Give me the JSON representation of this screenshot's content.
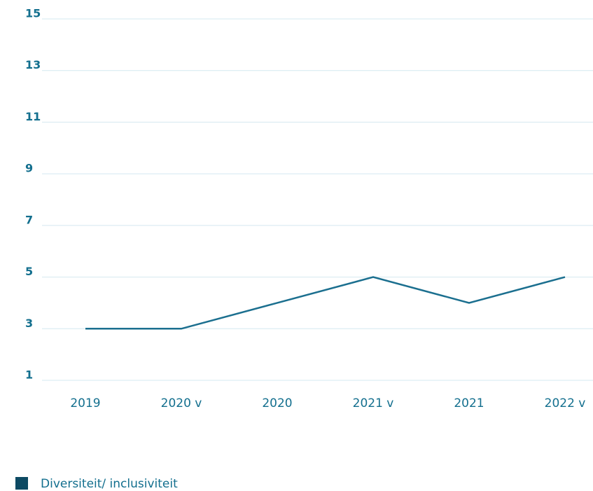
{
  "chart_data": {
    "type": "line",
    "categories": [
      "2019",
      "2020 v",
      "2020",
      "2021 v",
      "2021",
      "2022 v"
    ],
    "series": [
      {
        "name": "Diversiteit/ inclusiviteit",
        "color": "#1b6f8f",
        "values": [
          3,
          3,
          4,
          5,
          4,
          5
        ]
      }
    ],
    "ylim": [
      1,
      15
    ],
    "yticks": [
      1,
      3,
      5,
      7,
      9,
      11,
      13,
      15
    ],
    "grid": true,
    "legend_color": "#0d4a63"
  }
}
